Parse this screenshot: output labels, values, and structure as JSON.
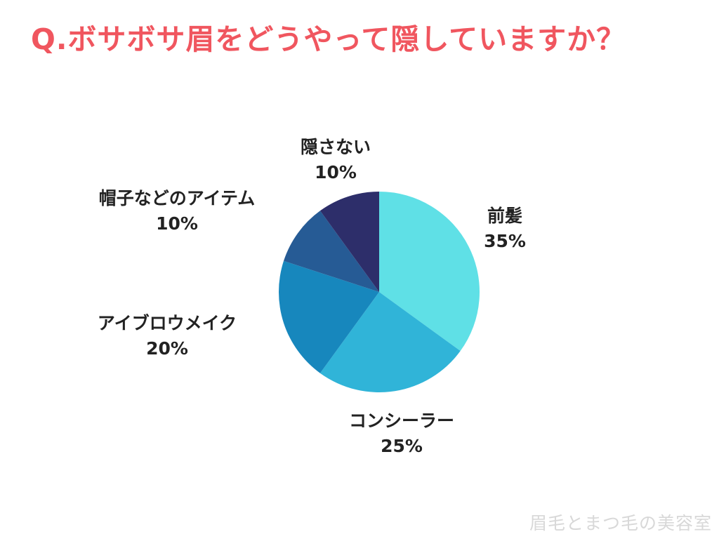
{
  "title": "Q.ボサボサ眉をどうやって隠していますか？",
  "watermark": "眉毛とまつ毛の美容室",
  "chart_data": {
    "type": "pie",
    "categories": [
      "前髪",
      "コンシーラー",
      "アイブロウメイク",
      "帽子などのアイテム",
      "隠さない"
    ],
    "values": [
      35,
      25,
      20,
      10,
      10
    ],
    "value_labels": [
      "35%",
      "25%",
      "20%",
      "10%",
      "10%"
    ],
    "colors": [
      "#5fe0e6",
      "#30b4d8",
      "#1787bd",
      "#265b95",
      "#2d2e6a"
    ],
    "start_angle": "12 o'clock",
    "direction": "clockwise",
    "title": "Q.ボサボサ眉をどうやって隠していますか？",
    "legend": "labels beside slices"
  }
}
